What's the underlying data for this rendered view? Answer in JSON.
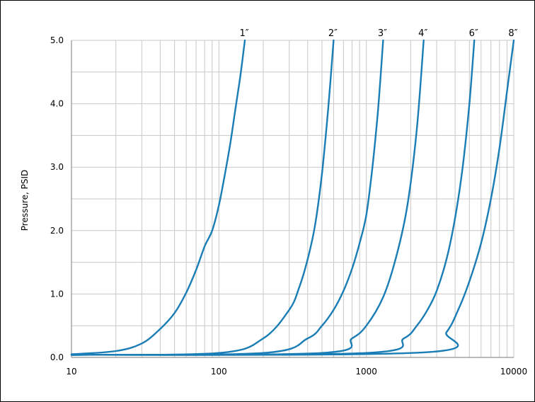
{
  "chart_data": {
    "type": "line",
    "xlabel": "",
    "ylabel": "Pressure, PSID",
    "xscale": "log",
    "xlim": [
      10,
      10000
    ],
    "ylim": [
      0,
      5
    ],
    "xticks": [
      "10",
      "100",
      "1000",
      "10000"
    ],
    "yticks": [
      "0.0",
      "1.0",
      "2.0",
      "3.0",
      "4.0",
      "5.0"
    ],
    "grid": true,
    "line_color": "#1a7db5",
    "series": [
      {
        "name": "1″",
        "x": [
          10,
          20,
          30,
          40,
          50,
          60,
          70,
          80,
          90,
          100,
          110,
          120,
          130,
          140,
          150
        ],
        "y": [
          0.05,
          0.1,
          0.22,
          0.45,
          0.7,
          1.02,
          1.38,
          1.75,
          2.0,
          2.4,
          2.9,
          3.4,
          3.95,
          4.45,
          5.0
        ]
      },
      {
        "name": "2″",
        "x": [
          10,
          100,
          200,
          300,
          350,
          400,
          450,
          500,
          550,
          600
        ],
        "y": [
          0.04,
          0.07,
          0.3,
          0.75,
          1.1,
          1.55,
          2.1,
          2.9,
          3.9,
          5.0
        ]
      },
      {
        "name": "3″",
        "x": [
          10,
          200,
          400,
          500,
          600,
          700,
          800,
          900,
          1000,
          1100,
          1200,
          1300
        ],
        "y": [
          0.04,
          0.07,
          0.3,
          0.5,
          0.75,
          1.05,
          1.4,
          1.8,
          2.25,
          3.0,
          3.9,
          5.0
        ]
      },
      {
        "name": "4″",
        "x": [
          10,
          500,
          800,
          1000,
          1300,
          1600,
          1900,
          2200,
          2450
        ],
        "y": [
          0.04,
          0.07,
          0.3,
          0.5,
          0.95,
          1.6,
          2.4,
          3.6,
          5.0
        ]
      },
      {
        "name": "6″",
        "x": [
          10,
          1000,
          1800,
          2200,
          2600,
          3000,
          3500,
          4000,
          4500,
          5000,
          5400
        ],
        "y": [
          0.04,
          0.07,
          0.3,
          0.5,
          0.75,
          1.05,
          1.55,
          2.2,
          3.0,
          4.0,
          5.0
        ]
      },
      {
        "name": "8″",
        "x": [
          10,
          2500,
          3500,
          4200,
          5000,
          6000,
          7000,
          8000,
          9000,
          10000
        ],
        "y": [
          0.04,
          0.08,
          0.4,
          0.75,
          1.2,
          1.8,
          2.5,
          3.3,
          4.2,
          5.0
        ]
      }
    ]
  }
}
